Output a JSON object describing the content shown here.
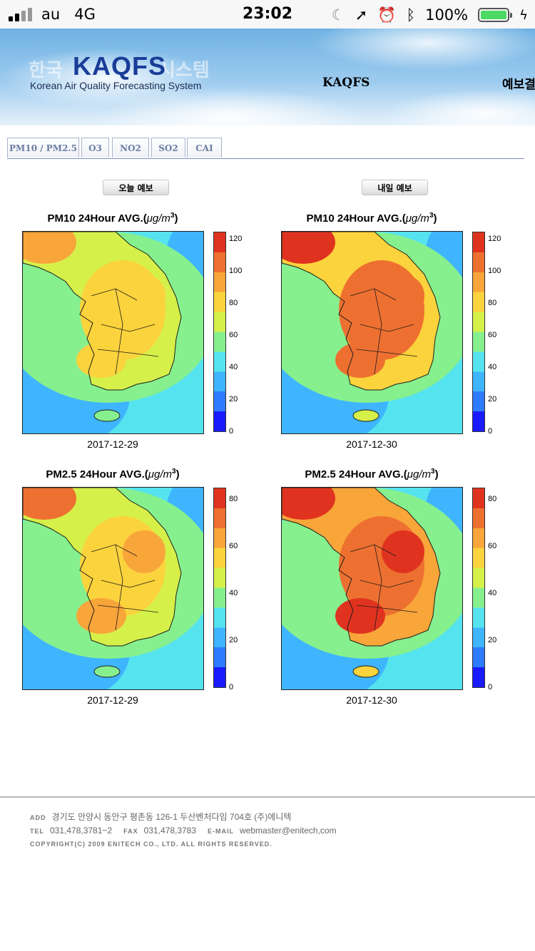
{
  "status_bar": {
    "carrier": "au",
    "network": "4G",
    "time": "23:02",
    "battery": "100%"
  },
  "header": {
    "logo_ghost_left": "한국",
    "logo_ghost_right": "시스템",
    "logo": "KAQFS",
    "logo_subtitle": "Korean Air Quality Forecasting System",
    "nav": [
      "KAQFS",
      "예보결"
    ]
  },
  "tabs": [
    "PM10 / PM2.5",
    "O3",
    "NO2",
    "SO2",
    "CAI"
  ],
  "forecast_buttons": {
    "today": "오늘 예보",
    "tomorrow": "내일 예보"
  },
  "colors": {
    "scale": [
      "#1a1aff",
      "#2f7bff",
      "#3fb5ff",
      "#55e3f0",
      "#86f08e",
      "#d6f04a",
      "#fbd33c",
      "#f8a53a",
      "#ee7030",
      "#e0331f"
    ],
    "tab_text": "#6b7da3",
    "logo": "#1a3d99"
  },
  "chart_data": [
    {
      "type": "heatmap",
      "title": "PM10 24Hour AVG.(μg/m³)",
      "title_main": "PM10 24Hour AVG.(",
      "unit": "μg/m",
      "unit_exp": "3",
      "date": "2017-12-29",
      "colorbar_ticks": [
        0,
        20,
        40,
        60,
        80,
        100,
        120
      ],
      "range": [
        0,
        125
      ],
      "max_level": 0.75
    },
    {
      "type": "heatmap",
      "title": "PM10 24Hour AVG.(μg/m³)",
      "title_main": "PM10 24Hour AVG.(",
      "unit": "μg/m",
      "unit_exp": "3",
      "date": "2017-12-30",
      "colorbar_ticks": [
        0,
        20,
        40,
        60,
        80,
        100,
        120
      ],
      "range": [
        0,
        125
      ],
      "max_level": 0.95
    },
    {
      "type": "heatmap",
      "title": "PM2.5 24Hour AVG.(μg/m³)",
      "title_main": "PM2.5 24Hour AVG.(",
      "unit": "μg/m",
      "unit_exp": "3",
      "date": "2017-12-29",
      "colorbar_ticks": [
        0,
        20,
        40,
        60,
        80
      ],
      "range": [
        0,
        85
      ],
      "max_level": 0.82
    },
    {
      "type": "heatmap",
      "title": "PM2.5 24Hour AVG.(μg/m³)",
      "title_main": "PM2.5 24Hour AVG.(",
      "unit": "μg/m",
      "unit_exp": "3",
      "date": "2017-12-30",
      "colorbar_ticks": [
        0,
        20,
        40,
        60,
        80
      ],
      "range": [
        0,
        85
      ],
      "max_level": 1.0
    }
  ],
  "footer": {
    "add_label": "ADD",
    "address": "경기도 안양시 동안구 평촌동 126-1 두산벤처다임 704호 (주)에니텍",
    "tel_label": "TEL",
    "tel": "031,478,3781~2",
    "fax_label": "FAX",
    "fax": "031,478,3783",
    "email_label": "E-MAIL",
    "email": "webmaster@enitech,com",
    "copyright": "COPYRIGHT(C) 2009 ENITECH CO., LTD.  ALL RIGHTS RESERVED."
  }
}
